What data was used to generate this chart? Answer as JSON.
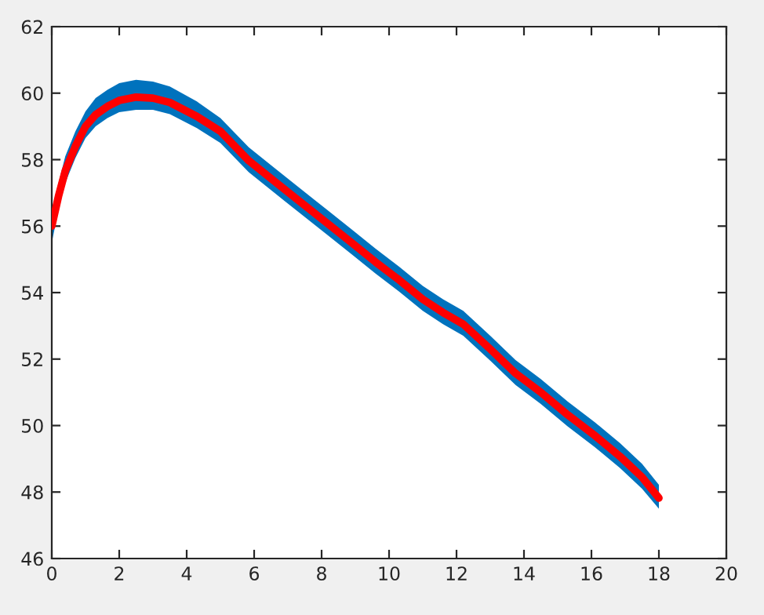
{
  "chart_data": {
    "type": "line",
    "x": [
      0,
      0.2,
      0.4,
      0.7,
      1.0,
      1.3,
      1.65,
      2.0,
      2.5,
      3.0,
      3.5,
      4.3,
      5.0,
      5.84,
      6.6,
      7.38,
      8.15,
      8.93,
      9.6,
      10.3,
      11.0,
      11.6,
      12.2,
      13.0,
      13.75,
      14.5,
      15.3,
      16.1,
      16.85,
      17.5,
      18
    ],
    "series": [
      {
        "color": "#0072bd",
        "values": [
          null,
          null,
          null,
          null,
          null,
          null,
          null,
          null,
          null,
          null,
          null,
          null,
          null,
          null,
          null,
          null,
          null,
          null,
          null,
          null,
          null,
          null,
          null,
          null,
          null,
          null,
          null,
          null,
          null,
          null,
          null
        ],
        "lower": [
          55.5,
          56.5,
          57.3,
          58.05,
          58.65,
          59.0,
          59.25,
          59.43,
          59.5,
          59.5,
          59.37,
          58.95,
          58.5,
          57.62,
          57.0,
          56.37,
          55.75,
          55.12,
          54.57,
          54.03,
          53.45,
          53.05,
          52.7,
          51.95,
          51.22,
          50.65,
          49.97,
          49.35,
          48.72,
          48.1,
          47.5
        ],
        "upper": [
          56.5,
          57.3,
          58.1,
          58.85,
          59.45,
          59.85,
          60.1,
          60.3,
          60.4,
          60.35,
          60.2,
          59.75,
          59.25,
          58.37,
          57.75,
          57.12,
          56.5,
          55.87,
          55.32,
          54.78,
          54.2,
          53.8,
          53.45,
          52.7,
          51.97,
          51.4,
          50.72,
          50.1,
          49.47,
          48.85,
          48.22
        ]
      },
      {
        "color": "#ff0000",
        "values": [
          56.0,
          56.9,
          57.66,
          58.4,
          59.0,
          59.35,
          59.6,
          59.78,
          59.88,
          59.85,
          59.72,
          59.3,
          58.85,
          57.97,
          57.35,
          56.72,
          56.1,
          55.47,
          54.92,
          54.38,
          53.8,
          53.4,
          53.05,
          52.3,
          51.57,
          51.0,
          50.32,
          49.7,
          49.07,
          48.45,
          47.82
        ]
      }
    ],
    "xlim": [
      0,
      20
    ],
    "xticks": [
      0,
      2,
      4,
      6,
      8,
      10,
      12,
      14,
      16,
      18,
      20
    ],
    "ylim": [
      46,
      62
    ],
    "yticks": [
      46,
      48,
      50,
      52,
      54,
      56,
      58,
      60,
      62
    ],
    "grid": false,
    "marker": "none",
    "line_style": "solid"
  }
}
